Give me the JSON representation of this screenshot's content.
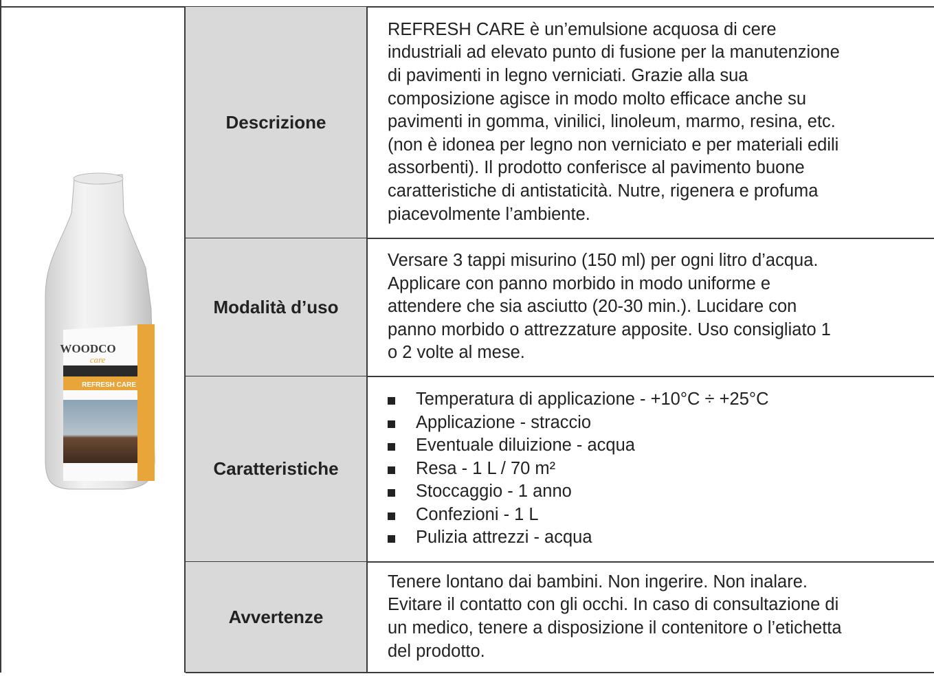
{
  "product": {
    "brand": "WOODCO",
    "line": "care",
    "name": "REFRESH CARE"
  },
  "rows": [
    {
      "label": "Descrizione",
      "lines": [
        " REFRESH CARE è un’emulsione acquosa di cere",
        "industriali ad elevato punto di fusione per la manutenzione",
        "di pavimenti in legno verniciati. Grazie alla sua",
        "composizione agisce in modo molto efficace anche su",
        "pavimenti in gomma, vinilici, linoleum, marmo, resina, etc.",
        "(non è idonea per legno non verniciato e per materiali edili",
        "assorbenti). Il prodotto conferisce al pavimento buone",
        "caratteristiche di antistaticità. Nutre, rigenera e profuma",
        "piacevolmente l’ambiente."
      ]
    },
    {
      "label": "Modalità d’uso",
      "lines": [
        "Versare 3 tappi misurino (150 ml) per ogni litro d’acqua.",
        "Applicare con panno morbido in modo uniforme e",
        "attendere che sia asciutto (20-30 min.). Lucidare con",
        "panno morbido o attrezzature apposite. Uso consigliato 1",
        "o 2 volte al mese."
      ]
    },
    {
      "label": "Caratteristiche",
      "items": [
        "Temperatura di applicazione - +10°C ÷ +25°C",
        "Applicazione - straccio",
        "Eventuale diluizione - acqua",
        "Resa - 1 L / 70 m²",
        "Stoccaggio - 1 anno",
        "Confezioni - 1 L",
        "Pulizia attrezzi - acqua"
      ]
    },
    {
      "label": "Avvertenze",
      "lines": [
        "Tenere lontano dai bambini. Non ingerire. Non inalare.",
        "Evitare il contatto con gli occhi. In caso di consultazione di",
        "un medico, tenere a disposizione il contenitore o l’etichetta",
        "del prodotto."
      ]
    }
  ]
}
